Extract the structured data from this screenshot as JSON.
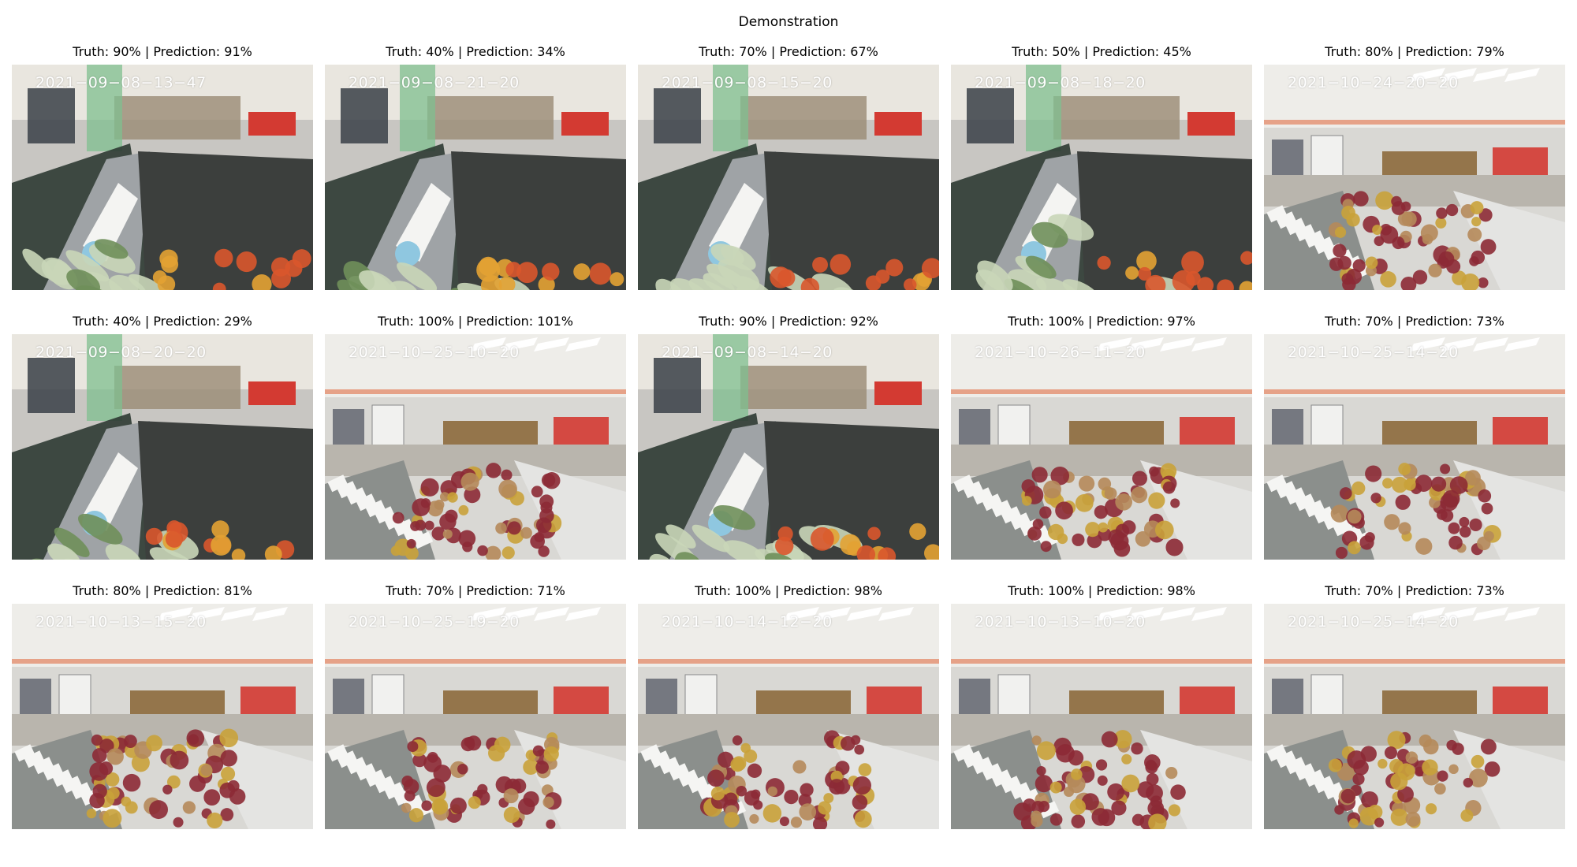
{
  "figure": {
    "title": "Demonstration"
  },
  "panels": [
    {
      "title": "Truth: 90% | Prediction: 91%",
      "timestamp": "2021−09−08−13−47",
      "truth_pct": 90,
      "prediction_pct": 91,
      "scene": "closeup"
    },
    {
      "title": "Truth: 40% | Prediction: 34%",
      "timestamp": "2021−09−08−21−20",
      "truth_pct": 40,
      "prediction_pct": 34,
      "scene": "closeup"
    },
    {
      "title": "Truth: 70% | Prediction: 67%",
      "timestamp": "2021−09−08−15−20",
      "truth_pct": 70,
      "prediction_pct": 67,
      "scene": "closeup"
    },
    {
      "title": "Truth: 50% | Prediction: 45%",
      "timestamp": "2021−09−08−18−20",
      "truth_pct": 50,
      "prediction_pct": 45,
      "scene": "closeup"
    },
    {
      "title": "Truth: 80% | Prediction: 79%",
      "timestamp": "2021−10−24−20−20",
      "truth_pct": 80,
      "prediction_pct": 79,
      "scene": "wide"
    },
    {
      "title": "Truth: 40% | Prediction: 29%",
      "timestamp": "2021−09−08−20−20",
      "truth_pct": 40,
      "prediction_pct": 29,
      "scene": "closeup"
    },
    {
      "title": "Truth: 100% | Prediction: 101%",
      "timestamp": "2021−10−25−10−20",
      "truth_pct": 100,
      "prediction_pct": 101,
      "scene": "wide"
    },
    {
      "title": "Truth: 90% | Prediction: 92%",
      "timestamp": "2021−09−08−14−20",
      "truth_pct": 90,
      "prediction_pct": 92,
      "scene": "closeup"
    },
    {
      "title": "Truth: 100% | Prediction: 97%",
      "timestamp": "2021−10−26−11−20",
      "truth_pct": 100,
      "prediction_pct": 97,
      "scene": "wide"
    },
    {
      "title": "Truth: 70% | Prediction: 73%",
      "timestamp": "2021−10−25−14−20",
      "truth_pct": 70,
      "prediction_pct": 73,
      "scene": "wide"
    },
    {
      "title": "Truth: 80% | Prediction: 81%",
      "timestamp": "2021−10−13−15−20",
      "truth_pct": 80,
      "prediction_pct": 81,
      "scene": "wide"
    },
    {
      "title": "Truth: 70% | Prediction: 71%",
      "timestamp": "2021−10−25−19−20",
      "truth_pct": 70,
      "prediction_pct": 71,
      "scene": "wide"
    },
    {
      "title": "Truth: 100% | Prediction: 98%",
      "timestamp": "2021−10−14−12−20",
      "truth_pct": 100,
      "prediction_pct": 98,
      "scene": "wide"
    },
    {
      "title": "Truth: 100% | Prediction: 98%",
      "timestamp": "2021−10−13−10−20",
      "truth_pct": 100,
      "prediction_pct": 98,
      "scene": "wide"
    },
    {
      "title": "Truth: 70% | Prediction: 73%",
      "timestamp": "2021−10−25−14−20",
      "truth_pct": 70,
      "prediction_pct": 73,
      "scene": "wide"
    }
  ],
  "colors": {
    "background": "#ffffff",
    "produce_red": "#8c2a35",
    "produce_yellow": "#c9a23a",
    "produce_green": "#6f8f5a",
    "banner_green": "#7fbf8f",
    "display_red": "#d33a32"
  }
}
